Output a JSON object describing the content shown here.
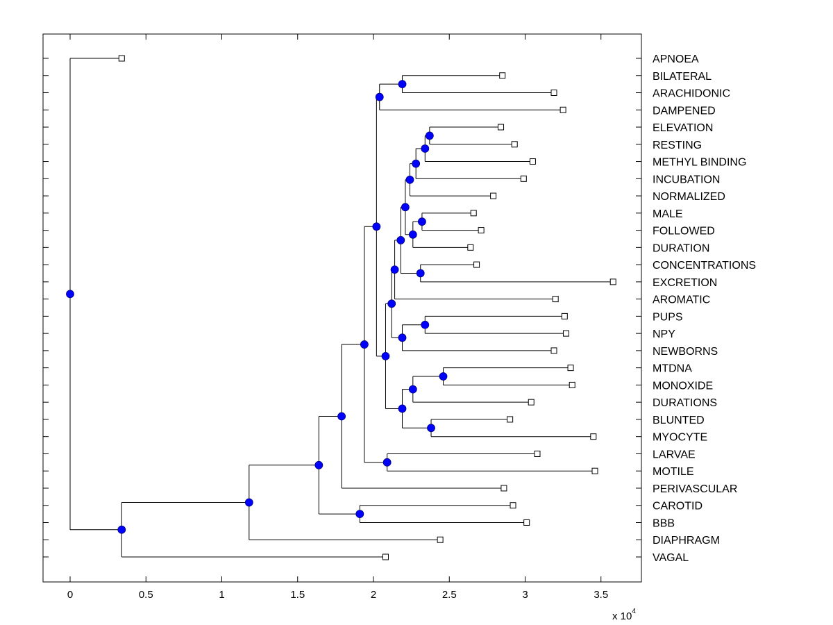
{
  "chart_data": {
    "type": "dendrogram",
    "title": "",
    "xlabel": "",
    "ylabel": "",
    "x_multiplier_label": "x 10",
    "x_multiplier_exponent": "4",
    "xlim": [
      -0.18,
      3.77
    ],
    "xticks": [
      0,
      0.5,
      1,
      1.5,
      2,
      2.5,
      3,
      3.5
    ],
    "xtick_labels": [
      "0",
      "0.5",
      "1",
      "1.5",
      "2",
      "2.5",
      "3",
      "3.5"
    ],
    "grid": false,
    "leaf_marker": "open-square",
    "node_marker": "filled-circle",
    "node_color": "#0000ff",
    "line_color": "#000000",
    "leaves": [
      {
        "label": "APNOEA",
        "x": 0.34
      },
      {
        "label": "BILATERAL",
        "x": 2.85
      },
      {
        "label": "ARACHIDONIC",
        "x": 3.19
      },
      {
        "label": "DAMPENED",
        "x": 3.25
      },
      {
        "label": "ELEVATION",
        "x": 2.84
      },
      {
        "label": "RESTING",
        "x": 2.93
      },
      {
        "label": "METHYL BINDING",
        "x": 3.05
      },
      {
        "label": "INCUBATION",
        "x": 2.99
      },
      {
        "label": "NORMALIZED",
        "x": 2.79
      },
      {
        "label": "MALE",
        "x": 2.66
      },
      {
        "label": "FOLLOWED",
        "x": 2.71
      },
      {
        "label": "DURATION",
        "x": 2.64
      },
      {
        "label": "CONCENTRATIONS",
        "x": 2.68
      },
      {
        "label": "EXCRETION",
        "x": 3.58
      },
      {
        "label": "AROMATIC",
        "x": 3.2
      },
      {
        "label": "PUPS",
        "x": 3.26
      },
      {
        "label": "NPY",
        "x": 3.27
      },
      {
        "label": "NEWBORNS",
        "x": 3.19
      },
      {
        "label": "MTDNA",
        "x": 3.3
      },
      {
        "label": "MONOXIDE",
        "x": 3.31
      },
      {
        "label": "DURATIONS",
        "x": 3.04
      },
      {
        "label": "BLUNTED",
        "x": 2.9
      },
      {
        "label": "MYOCYTE",
        "x": 3.45
      },
      {
        "label": "LARVAE",
        "x": 3.08
      },
      {
        "label": "MOTILE",
        "x": 3.46
      },
      {
        "label": "PERIVASCULAR",
        "x": 2.86
      },
      {
        "label": "CAROTID",
        "x": 2.92
      },
      {
        "label": "BBB",
        "x": 3.01
      },
      {
        "label": "DIAPHRAGM",
        "x": 2.44
      },
      {
        "label": "VAGAL",
        "x": 2.08
      }
    ],
    "tree": {
      "x": 0.0,
      "children": [
        {
          "leaf": 0
        },
        {
          "x": 0.34,
          "children": [
            {
              "x": 1.18,
              "children": [
                {
                  "x": 1.64,
                  "children": [
                    {
                      "x": 1.79,
                      "children": [
                        {
                          "x": 1.94,
                          "children": [
                            {
                              "x": 2.02,
                              "children": [
                                {
                                  "x": 2.04,
                                  "children": [
                                    {
                                      "x": 2.19,
                                      "children": [
                                        {
                                          "leaf": 1
                                        },
                                        {
                                          "leaf": 2
                                        }
                                      ]
                                    },
                                    {
                                      "leaf": 3
                                    }
                                  ]
                                },
                                {
                                  "x": 2.08,
                                  "children": [
                                    {
                                      "x": 2.12,
                                      "children": [
                                        {
                                          "x": 2.14,
                                          "children": [
                                            {
                                              "x": 2.18,
                                              "children": [
                                                {
                                                  "x": 2.21,
                                                  "children": [
                                                    {
                                                      "x": 2.24,
                                                      "children": [
                                                        {
                                                          "x": 2.28,
                                                          "children": [
                                                            {
                                                              "x": 2.34,
                                                              "children": [
                                                                {
                                                                  "x": 2.37,
                                                                  "children": [
                                                                    {
                                                                      "leaf": 4
                                                                    },
                                                                    {
                                                                      "leaf": 5
                                                                    }
                                                                  ]
                                                                },
                                                                {
                                                                  "leaf": 6
                                                                }
                                                              ]
                                                            },
                                                            {
                                                              "leaf": 7
                                                            }
                                                          ]
                                                        },
                                                        {
                                                          "leaf": 8
                                                        }
                                                      ]
                                                    },
                                                    {
                                                      "x": 2.26,
                                                      "children": [
                                                        {
                                                          "x": 2.32,
                                                          "children": [
                                                            {
                                                              "leaf": 9
                                                            },
                                                            {
                                                              "leaf": 10
                                                            }
                                                          ]
                                                        },
                                                        {
                                                          "leaf": 11
                                                        }
                                                      ]
                                                    }
                                                  ]
                                                },
                                                {
                                                  "x": 2.31,
                                                  "children": [
                                                    {
                                                      "leaf": 12
                                                    },
                                                    {
                                                      "leaf": 13
                                                    }
                                                  ]
                                                }
                                              ]
                                            },
                                            {
                                              "leaf": 14
                                            }
                                          ]
                                        },
                                        {
                                          "x": 2.19,
                                          "children": [
                                            {
                                              "x": 2.34,
                                              "children": [
                                                {
                                                  "leaf": 15
                                                },
                                                {
                                                  "leaf": 16
                                                }
                                              ]
                                            },
                                            {
                                              "leaf": 17
                                            }
                                          ]
                                        }
                                      ]
                                    },
                                    {
                                      "x": 2.19,
                                      "children": [
                                        {
                                          "x": 2.26,
                                          "children": [
                                            {
                                              "x": 2.46,
                                              "children": [
                                                {
                                                  "leaf": 18
                                                },
                                                {
                                                  "leaf": 19
                                                }
                                              ]
                                            },
                                            {
                                              "leaf": 20
                                            }
                                          ]
                                        },
                                        {
                                          "x": 2.38,
                                          "children": [
                                            {
                                              "leaf": 21
                                            },
                                            {
                                              "leaf": 22
                                            }
                                          ]
                                        }
                                      ]
                                    }
                                  ]
                                }
                              ]
                            },
                            {
                              "x": 2.09,
                              "children": [
                                {
                                  "leaf": 23
                                },
                                {
                                  "leaf": 24
                                }
                              ]
                            }
                          ]
                        },
                        {
                          "leaf": 25
                        }
                      ]
                    },
                    {
                      "x": 1.91,
                      "children": [
                        {
                          "leaf": 26
                        },
                        {
                          "leaf": 27
                        }
                      ]
                    }
                  ]
                },
                {
                  "leaf": 28
                }
              ]
            },
            {
              "leaf": 29
            }
          ]
        }
      ]
    }
  }
}
